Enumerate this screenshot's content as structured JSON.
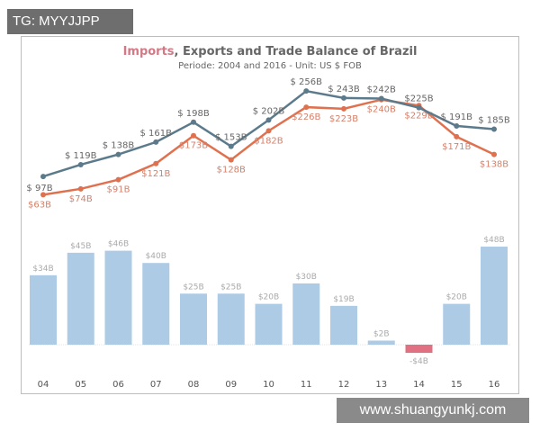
{
  "watermark_top": "TG: MYYJJPP",
  "watermark_bottom": "www.shuangyunkj.com",
  "chart_data": {
    "type": "line+bar",
    "title_highlight": "Imports",
    "title_rest": ", Exports and Trade Balance of Brazil",
    "subtitle": "Periode: 2004 and 2016 - Unit: US $ FOB",
    "categories": [
      "04",
      "05",
      "06",
      "07",
      "08",
      "09",
      "10",
      "11",
      "12",
      "13",
      "14",
      "15",
      "16"
    ],
    "series": [
      {
        "name": "Exports",
        "kind": "line",
        "color": "#5b7a8c",
        "values": [
          97,
          119,
          138,
          161,
          198,
          153,
          202,
          256,
          243,
          242,
          225,
          191,
          185
        ],
        "labels": [
          "$ 97B",
          "$ 119B",
          "$ 138B",
          "$ 161B",
          "$ 198B",
          "$ 153B",
          "$ 202B",
          "$ 256B",
          "$ 243B",
          "$242B",
          "$225B",
          "$ 191B",
          "$ 185B"
        ]
      },
      {
        "name": "Imports",
        "kind": "line",
        "color": "#e0714f",
        "values": [
          63,
          74,
          91,
          121,
          173,
          128,
          182,
          226,
          223,
          240,
          229,
          171,
          138
        ],
        "labels": [
          "$63B",
          "$74B",
          "$91B",
          "$121B",
          "$173B",
          "$128B",
          "$182B",
          "$226B",
          "$223B",
          "$240B",
          "$229B",
          "$171B",
          "$138B"
        ]
      },
      {
        "name": "Trade Balance",
        "kind": "bar",
        "color": "#aecbe6",
        "negative_color": "#e07182",
        "values": [
          34,
          45,
          46,
          40,
          25,
          25,
          20,
          30,
          19,
          2,
          -4,
          20,
          48
        ],
        "labels": [
          "$34B",
          "$45B",
          "$46B",
          "$40B",
          "$25B",
          "$25B",
          "$20B",
          "$30B",
          "$19B",
          "$2B",
          "-$4B",
          "$20B",
          "$48B"
        ]
      }
    ],
    "grid": false
  }
}
